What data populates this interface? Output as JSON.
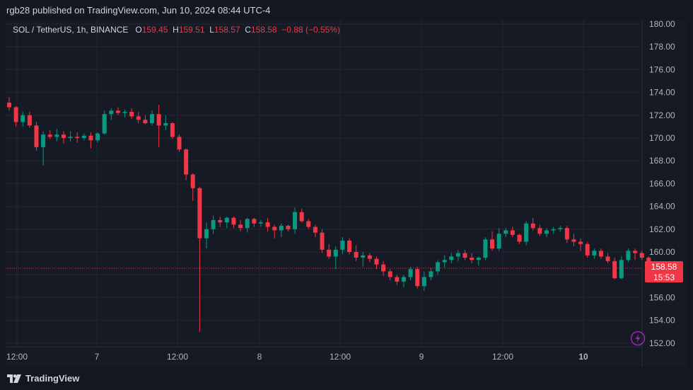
{
  "header": {
    "publisher_line": "rgb28 published on TradingView.com, Jun 10, 2024 08:44 UTC-4"
  },
  "legend": {
    "symbol": "SOL / TetherUS, 1h, BINANCE",
    "o_label": "O",
    "o_value": "159.45",
    "h_label": "H",
    "h_value": "159.51",
    "l_label": "L",
    "l_value": "158.57",
    "c_label": "C",
    "c_value": "158.58",
    "change": "−0.88 (−0.55%)"
  },
  "price_tag": {
    "price": "158.58",
    "countdown": "15:53"
  },
  "brand": {
    "name": "TradingView"
  },
  "colors": {
    "up": "#089981",
    "down": "#f23645",
    "background": "#161a25",
    "grid": "#232632"
  },
  "chart_data": {
    "type": "candlestick",
    "ylim": [
      151,
      181
    ],
    "y_ticks": [
      "152.00",
      "154.00",
      "156.00",
      "158.00",
      "160.00",
      "162.00",
      "164.00",
      "166.00",
      "168.00",
      "170.00",
      "172.00",
      "174.00",
      "176.00",
      "178.00",
      "180.00"
    ],
    "x_tick_labels": [
      "12:00",
      "7",
      "12:00",
      "8",
      "12:00",
      "9",
      "12:00",
      "10"
    ],
    "last_price": 158.58,
    "candles": [
      [
        173.1,
        173.6,
        172.4,
        172.7
      ],
      [
        172.7,
        172.8,
        171.0,
        171.4
      ],
      [
        171.4,
        172.3,
        171.0,
        172.0
      ],
      [
        172.0,
        172.3,
        170.9,
        171.1
      ],
      [
        171.1,
        171.4,
        168.9,
        169.2
      ],
      [
        169.2,
        170.6,
        167.6,
        170.3
      ],
      [
        170.3,
        170.7,
        169.9,
        170.1
      ],
      [
        170.1,
        170.8,
        169.7,
        170.3
      ],
      [
        170.3,
        170.6,
        169.5,
        170.0
      ],
      [
        170.0,
        170.6,
        169.7,
        170.1
      ],
      [
        170.1,
        170.5,
        169.6,
        170.0
      ],
      [
        170.0,
        170.4,
        169.8,
        170.2
      ],
      [
        170.2,
        170.5,
        169.1,
        169.8
      ],
      [
        169.8,
        170.5,
        169.6,
        170.4
      ],
      [
        170.4,
        172.4,
        170.3,
        172.1
      ],
      [
        172.1,
        172.6,
        171.6,
        172.4
      ],
      [
        172.4,
        172.7,
        172.0,
        172.2
      ],
      [
        172.2,
        172.5,
        171.8,
        172.3
      ],
      [
        172.3,
        172.6,
        171.7,
        171.9
      ],
      [
        171.9,
        172.3,
        171.3,
        171.6
      ],
      [
        171.6,
        172.0,
        171.2,
        171.3
      ],
      [
        171.3,
        172.4,
        171.1,
        172.1
      ],
      [
        172.1,
        172.9,
        169.2,
        171.1
      ],
      [
        171.1,
        172.0,
        170.7,
        171.3
      ],
      [
        171.3,
        171.4,
        169.9,
        170.1
      ],
      [
        170.1,
        170.3,
        168.8,
        169.0
      ],
      [
        169.0,
        169.1,
        166.3,
        166.8
      ],
      [
        166.8,
        166.9,
        164.5,
        165.6
      ],
      [
        165.6,
        165.7,
        153.0,
        161.2
      ],
      [
        161.2,
        162.6,
        160.3,
        162.0
      ],
      [
        162.0,
        163.2,
        161.6,
        162.8
      ],
      [
        162.8,
        163.1,
        162.2,
        162.6
      ],
      [
        162.6,
        163.1,
        162.1,
        163.0
      ],
      [
        163.0,
        163.1,
        162.1,
        162.4
      ],
      [
        162.4,
        162.8,
        161.8,
        162.1
      ],
      [
        162.1,
        163.0,
        161.7,
        162.9
      ],
      [
        162.9,
        163.0,
        162.2,
        162.5
      ],
      [
        162.5,
        162.8,
        162.2,
        162.6
      ],
      [
        162.6,
        163.0,
        161.8,
        162.2
      ],
      [
        162.2,
        162.4,
        161.2,
        161.9
      ],
      [
        161.9,
        162.5,
        161.3,
        162.3
      ],
      [
        162.3,
        162.4,
        161.8,
        162.0
      ],
      [
        162.0,
        163.9,
        161.6,
        163.5
      ],
      [
        163.5,
        163.8,
        162.6,
        162.7
      ],
      [
        162.7,
        162.9,
        162.0,
        162.2
      ],
      [
        162.2,
        162.4,
        161.3,
        161.7
      ],
      [
        161.7,
        162.0,
        159.9,
        160.2
      ],
      [
        160.2,
        160.7,
        159.4,
        159.6
      ],
      [
        159.6,
        160.5,
        158.5,
        160.2
      ],
      [
        160.2,
        161.3,
        159.8,
        161.0
      ],
      [
        161.0,
        161.2,
        159.8,
        160.0
      ],
      [
        160.0,
        160.6,
        159.2,
        159.5
      ],
      [
        159.5,
        160.0,
        158.7,
        159.7
      ],
      [
        159.7,
        159.9,
        159.1,
        159.4
      ],
      [
        159.4,
        159.6,
        158.5,
        158.9
      ],
      [
        158.9,
        159.2,
        157.9,
        158.3
      ],
      [
        158.3,
        158.5,
        157.5,
        157.8
      ],
      [
        157.8,
        158.0,
        157.1,
        157.4
      ],
      [
        157.4,
        158.0,
        156.9,
        157.8
      ],
      [
        157.8,
        158.7,
        157.5,
        158.5
      ],
      [
        158.5,
        158.7,
        156.8,
        157.0
      ],
      [
        157.0,
        158.3,
        156.6,
        157.8
      ],
      [
        157.8,
        158.6,
        157.5,
        158.3
      ],
      [
        158.3,
        159.3,
        158.0,
        159.1
      ],
      [
        159.1,
        159.7,
        158.6,
        159.3
      ],
      [
        159.3,
        159.9,
        159.0,
        159.6
      ],
      [
        159.6,
        160.2,
        159.2,
        159.9
      ],
      [
        159.9,
        160.2,
        159.3,
        159.5
      ],
      [
        159.5,
        159.9,
        159.0,
        159.3
      ],
      [
        159.3,
        159.6,
        158.8,
        159.5
      ],
      [
        159.5,
        161.3,
        159.3,
        161.1
      ],
      [
        161.1,
        161.8,
        160.1,
        160.3
      ],
      [
        160.3,
        162.1,
        160.1,
        161.6
      ],
      [
        161.6,
        162.1,
        161.3,
        161.9
      ],
      [
        161.9,
        162.2,
        161.3,
        161.5
      ],
      [
        161.5,
        161.6,
        160.7,
        160.9
      ],
      [
        160.9,
        162.7,
        160.6,
        162.5
      ],
      [
        162.5,
        163.0,
        161.9,
        162.1
      ],
      [
        162.1,
        162.4,
        161.4,
        161.6
      ],
      [
        161.6,
        162.1,
        161.3,
        161.9
      ],
      [
        161.9,
        162.2,
        161.6,
        162.0
      ],
      [
        162.0,
        162.3,
        161.8,
        162.1
      ],
      [
        162.1,
        162.3,
        160.8,
        161.1
      ],
      [
        161.1,
        161.6,
        160.5,
        160.9
      ],
      [
        160.9,
        161.2,
        160.1,
        160.7
      ],
      [
        160.7,
        160.9,
        159.5,
        159.7
      ],
      [
        159.7,
        160.3,
        159.4,
        160.1
      ],
      [
        160.1,
        160.3,
        159.4,
        159.6
      ],
      [
        159.6,
        159.9,
        159.0,
        159.2
      ],
      [
        159.2,
        159.5,
        157.6,
        157.7
      ],
      [
        157.7,
        159.6,
        157.6,
        159.3
      ],
      [
        159.3,
        160.3,
        159.1,
        160.1
      ],
      [
        160.1,
        160.3,
        159.3,
        159.9
      ],
      [
        159.9,
        160.1,
        159.3,
        159.5
      ],
      [
        159.5,
        159.6,
        158.5,
        158.6
      ]
    ]
  }
}
